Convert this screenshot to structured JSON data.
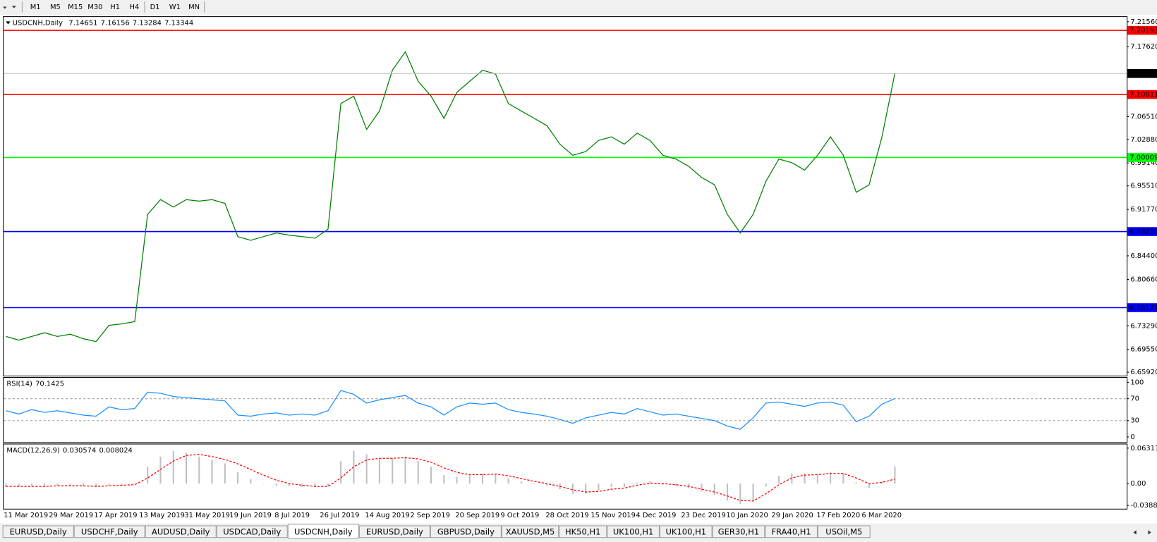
{
  "toolbar": {
    "timeframes": [
      "M1",
      "M5",
      "M15",
      "M30",
      "H1",
      "H4",
      "D1",
      "W1",
      "MN"
    ]
  },
  "tabs": {
    "items": [
      "EURUSD,Daily",
      "USDCHF,Daily",
      "AUDUSD,Daily",
      "USDCAD,Daily",
      "USDCNH,Daily",
      "EURUSD,Daily",
      "GBPUSD,Daily",
      "XAUUSD,M5",
      "HK50,H1",
      "UK100,H1",
      "UK100,H1",
      "GER30,H1",
      "FRA40,H1",
      "USOil,M5"
    ],
    "active": 4
  },
  "chart_data": [
    {
      "type": "line",
      "title": "USDCNH,Daily",
      "ohlc_last": {
        "open": 7.14651,
        "high": 7.16156,
        "low": 7.13284
      },
      "color": "#008000",
      "values": [
        6.716,
        6.7101,
        6.716,
        6.7219,
        6.716,
        6.7196,
        6.7125,
        6.7078,
        6.7336,
        6.736,
        6.7395,
        6.9097,
        6.9332,
        6.9214,
        6.9332,
        6.9308,
        6.9332,
        6.9273,
        6.8745,
        6.8686,
        6.8745,
        6.8803,
        6.8768,
        6.8745,
        6.8721,
        6.8862,
        7.0858,
        7.0975,
        7.0447,
        7.074,
        7.1386,
        7.1679,
        7.121,
        7.0975,
        7.0623,
        7.1034,
        7.121,
        7.1386,
        7.1327,
        7.0858,
        7.074,
        7.0623,
        7.0505,
        7.0212,
        7.0036,
        7.0095,
        7.0271,
        7.0329,
        7.0212,
        7.0388,
        7.0271,
        7.0036,
        6.9977,
        6.986,
        6.9684,
        6.9567,
        6.9097,
        6.8803,
        6.9097,
        6.9625,
        6.9977,
        6.9919,
        6.9801,
        7.0036,
        7.0329,
        7.0036,
        6.9449,
        6.9567,
        7.0329,
        7.13344
      ],
      "x_labels": [
        "11 Mar 2019",
        "29 Mar 2019",
        "17 Apr 2019",
        "13 May 2019",
        "31 May 2019",
        "19 Jun 2019",
        "8 Jul 2019",
        "26 Jul 2019",
        "14 Aug 2019",
        "2 Sep 2019",
        "20 Sep 2019",
        "9 Oct 2019",
        "28 Oct 2019",
        "15 Nov 2019",
        "4 Dec 2019",
        "23 Dec 2019",
        "10 Jan 2020",
        "29 Jan 2020",
        "17 Feb 2020",
        "6 Mar 2020"
      ],
      "levels": [
        {
          "value": 7.20193,
          "color": "#ff0000"
        },
        {
          "value": 7.10011,
          "color": "#ff0000"
        },
        {
          "value": 7.00009,
          "color": "#00ff00"
        },
        {
          "value": {
            "value": 6.8825,
            "label": "6.88250"
          },
          "color": "#0000ff"
        },
        {
          "value": 6.76171,
          "color": "#0000ff"
        }
      ],
      "ylim": [
        6.6538,
        7.2243
      ],
      "yticks": [
        {
          "value": 7.2156,
          "label": "7.21560"
        },
        {
          "value": 7.1762,
          "label": "7.17620"
        },
        {
          "value": 7.0651,
          "label": "7.06510"
        },
        {
          "value": 7.0288,
          "label": "7.02880"
        },
        {
          "value": 6.9914,
          "label": "6.99140"
        },
        {
          "value": 6.9551,
          "label": "6.95510"
        },
        {
          "value": 6.9177,
          "label": "6.91770"
        },
        {
          "value": 6.844,
          "label": "6.84400"
        },
        {
          "value": 6.8066,
          "label": "6.80660"
        },
        {
          "value": 6.7329,
          "label": "6.73290"
        },
        {
          "value": 6.6955,
          "label": "6.69550"
        },
        {
          "value": 6.6592,
          "label": "6.65920"
        }
      ]
    },
    {
      "type": "line",
      "title": "RSI(14)",
      "color": "#1e90ff",
      "values": [
        48,
        42,
        50,
        45,
        48,
        44,
        40,
        38,
        55,
        50,
        52,
        82,
        80,
        74,
        72,
        70,
        68,
        66,
        40,
        38,
        42,
        44,
        40,
        42,
        40,
        48,
        85,
        78,
        62,
        68,
        72,
        76,
        62,
        55,
        40,
        55,
        62,
        60,
        62,
        50,
        45,
        42,
        38,
        32,
        25,
        35,
        40,
        45,
        42,
        52,
        46,
        40,
        42,
        38,
        34,
        30,
        20,
        14,
        35,
        62,
        64,
        60,
        56,
        62,
        64,
        58,
        28,
        38,
        60,
        70.1425
      ],
      "levels": [
        30,
        70
      ],
      "ylim": [
        -9.5,
        109.5
      ],
      "yticks": [
        0,
        30,
        70,
        100
      ]
    },
    {
      "type": "bar",
      "title": "MACD(12,26,9)",
      "series": [
        {
          "color": "#c0c0c0",
          "values": [
            -0.006,
            -0.005,
            -0.005,
            -0.004,
            -0.004,
            -0.004,
            -0.005,
            -0.006,
            -0.003,
            -0.002,
            0.0,
            0.03,
            0.048,
            0.058,
            0.055,
            0.048,
            0.042,
            0.036,
            0.02,
            0.008,
            0.0,
            -0.004,
            -0.005,
            -0.006,
            -0.006,
            -0.004,
            0.04,
            0.058,
            0.052,
            0.045,
            0.045,
            0.048,
            0.04,
            0.03,
            0.015,
            0.012,
            0.015,
            0.018,
            0.018,
            0.01,
            0.004,
            0.0,
            -0.004,
            -0.01,
            -0.018,
            -0.018,
            -0.012,
            -0.006,
            -0.006,
            0.002,
            0.004,
            -0.002,
            -0.004,
            -0.008,
            -0.014,
            -0.02,
            -0.03,
            -0.036,
            -0.03,
            -0.005,
            0.014,
            0.018,
            0.018,
            0.016,
            0.02,
            0.018,
            0.002,
            -0.008,
            0.004,
            0.030574
          ]
        },
        {
          "color": "#ff0000",
          "values": [
            -0.005,
            -0.005,
            -0.005,
            -0.005,
            -0.004,
            -0.004,
            -0.004,
            -0.005,
            -0.004,
            -0.003,
            -0.002,
            0.01,
            0.025,
            0.04,
            0.05,
            0.052,
            0.048,
            0.043,
            0.035,
            0.025,
            0.015,
            0.006,
            0.0,
            -0.003,
            -0.005,
            -0.005,
            0.01,
            0.03,
            0.042,
            0.045,
            0.045,
            0.046,
            0.044,
            0.038,
            0.028,
            0.02,
            0.016,
            0.016,
            0.017,
            0.014,
            0.009,
            0.004,
            0.0,
            -0.005,
            -0.011,
            -0.015,
            -0.014,
            -0.01,
            -0.008,
            -0.003,
            0.001,
            0.0,
            -0.002,
            -0.005,
            -0.01,
            -0.015,
            -0.022,
            -0.03,
            -0.031,
            -0.018,
            -0.002,
            0.01,
            0.015,
            0.016,
            0.018,
            0.018,
            0.01,
            0.0,
            0.002,
            0.008024
          ]
        }
      ],
      "ylim": [
        -0.0447,
        0.071
      ],
      "yticks": [
        0.063113,
        {
          "value": 0,
          "label": "0.00"
        },
        -0.038872
      ]
    }
  ]
}
